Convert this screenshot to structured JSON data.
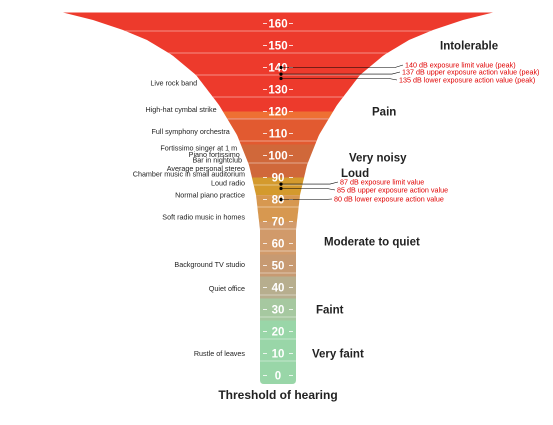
{
  "scale": {
    "unit": "dB",
    "ticks": [
      160,
      150,
      140,
      130,
      120,
      110,
      100,
      90,
      80,
      70,
      60,
      50,
      40,
      30,
      20,
      10,
      0
    ]
  },
  "bands": [
    {
      "from": 120,
      "to": 165,
      "color": "#ed3a2c"
    },
    {
      "from": 117,
      "to": 120,
      "color": "#ee7033"
    },
    {
      "from": 105,
      "to": 117,
      "color": "#e25a30"
    },
    {
      "from": 90,
      "to": 105,
      "color": "#d0683a"
    },
    {
      "from": 82,
      "to": 90,
      "color": "#d49a2d"
    },
    {
      "from": 70,
      "to": 82,
      "color": "#d79850"
    },
    {
      "from": 55,
      "to": 70,
      "color": "#d19a6a"
    },
    {
      "from": 45,
      "to": 55,
      "color": "#c79a72"
    },
    {
      "from": 35,
      "to": 45,
      "color": "#b7ae8e"
    },
    {
      "from": 25,
      "to": 35,
      "color": "#a6c8a0"
    },
    {
      "from": -4,
      "to": 25,
      "color": "#99d6a8"
    }
  ],
  "sources": [
    {
      "label": "Live rock band",
      "db": 133
    },
    {
      "label": "High-hat cymbal strike",
      "db": 121
    },
    {
      "label": "Full symphony orchestra",
      "db": 111
    },
    {
      "label": "Fortissimo singer at 1 m",
      "db": 103.5
    },
    {
      "label": "Piano fortissimo",
      "db": 100.5
    },
    {
      "label": "Bar in nightclub",
      "db": 98
    },
    {
      "label": "Average personal stereo",
      "db": 94
    },
    {
      "label": "Chamber music in small auditorium",
      "db": 91.5
    },
    {
      "label": "Loud radio",
      "db": 87.5
    },
    {
      "label": "Normal piano practice",
      "db": 82
    },
    {
      "label": "Soft radio music in homes",
      "db": 72
    },
    {
      "label": "Background TV studio",
      "db": 50.5
    },
    {
      "label": "Quiet office",
      "db": 39.5
    },
    {
      "label": "Rustle of leaves",
      "db": 10
    }
  ],
  "categories": [
    {
      "label": "Intolerable",
      "db": 150
    },
    {
      "label": "Pain",
      "db": 120
    },
    {
      "label": "Very noisy",
      "db": 99
    },
    {
      "label": "Loud",
      "db": 92
    },
    {
      "label": "Moderate to quiet",
      "db": 61
    },
    {
      "label": "Faint",
      "db": 30
    },
    {
      "label": "Very faint",
      "db": 10
    }
  ],
  "bottom_label": "Threshold of hearing",
  "thresholds": [
    {
      "db": 140,
      "label": "140 dB exposure limit value (peak)"
    },
    {
      "db": 137,
      "label": "137 dB upper exposure action value (peak)"
    },
    {
      "db": 135,
      "label": "135 dB lower exposure action value (peak)"
    },
    {
      "db": 87,
      "label": "87 dB exposure limit value"
    },
    {
      "db": 85,
      "label": "85 dB upper exposure action value"
    },
    {
      "db": 80,
      "label": "80 dB lower exposure action value"
    }
  ],
  "colors": {
    "threshold_text": "#e00000",
    "marker": "#000000",
    "label_text": "#222222",
    "scale_text": "#ffffff"
  }
}
